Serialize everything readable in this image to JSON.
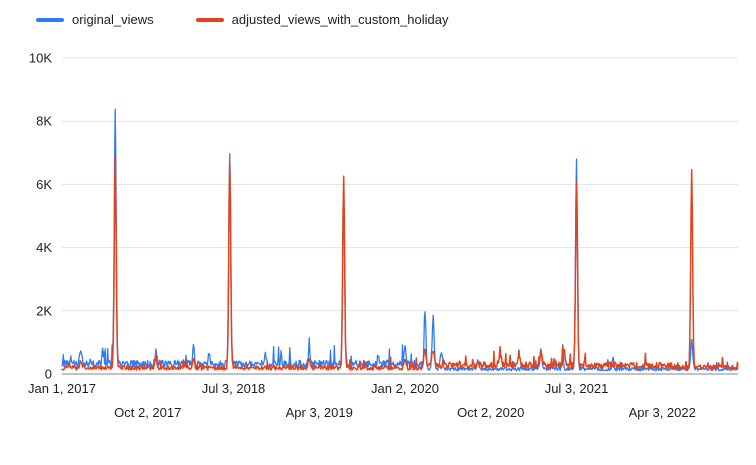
{
  "chart_data": {
    "type": "line",
    "title": "",
    "xlabel": "",
    "ylabel": "",
    "legend_position": "top-left",
    "grid": "horizontal",
    "colors": {
      "grid_line": "#e3e3e3",
      "axis_line": "#80868b",
      "tick_text": "#1f1f1f",
      "background": "#ffffff"
    },
    "x_axis": {
      "start_date": "2017-01-01",
      "total_days": 2160,
      "ticks": [
        {
          "label": "Jan 1, 2017",
          "day": 0,
          "row": 0
        },
        {
          "label": "Oct 2, 2017",
          "day": 274,
          "row": 1
        },
        {
          "label": "Jul 3, 2018",
          "day": 548,
          "row": 0
        },
        {
          "label": "Apr 3, 2019",
          "day": 822,
          "row": 1
        },
        {
          "label": "Jan 2, 2020",
          "day": 1096,
          "row": 0
        },
        {
          "label": "Oct 2, 2020",
          "day": 1370,
          "row": 1
        },
        {
          "label": "Jul 3, 2021",
          "day": 1644,
          "row": 0
        },
        {
          "label": "Apr 3, 2022",
          "day": 1918,
          "row": 1
        }
      ]
    },
    "y_axis": {
      "min": 0,
      "max": 10000,
      "tick_values": [
        0,
        2000,
        4000,
        6000,
        8000,
        10000
      ],
      "tick_labels": [
        "0",
        "2K",
        "4K",
        "6K",
        "8K",
        "10K"
      ]
    },
    "sampling_step_days": 2,
    "noise_seed": 42,
    "series": [
      {
        "name": "original_views",
        "color": "#2f7bf6",
        "stroke_width": 1.3,
        "baseline_segments": [
          {
            "from": 0,
            "to": 1150,
            "mean": 330,
            "amp": 450,
            "spike_prob": 0.05
          },
          {
            "from": 1150,
            "to": 2161,
            "mean": 165,
            "amp": 220,
            "spike_prob": 0.04
          }
        ],
        "spikes": [
          {
            "day": 60,
            "peak": 500,
            "width": 3
          },
          {
            "day": 130,
            "peak": 450,
            "width": 2
          },
          {
            "day": 170,
            "peak": 8150,
            "width": 3
          },
          {
            "day": 300,
            "peak": 420,
            "width": 3
          },
          {
            "day": 420,
            "peak": 520,
            "width": 3
          },
          {
            "day": 470,
            "peak": 380,
            "width": 2
          },
          {
            "day": 536,
            "peak": 6600,
            "width": 3
          },
          {
            "day": 650,
            "peak": 350,
            "width": 2
          },
          {
            "day": 700,
            "peak": 400,
            "width": 2
          },
          {
            "day": 790,
            "peak": 480,
            "width": 3
          },
          {
            "day": 900,
            "peak": 5300,
            "width": 3
          },
          {
            "day": 1010,
            "peak": 350,
            "width": 2
          },
          {
            "day": 1096,
            "peak": 520,
            "width": 3
          },
          {
            "day": 1160,
            "peak": 1800,
            "width": 3
          },
          {
            "day": 1186,
            "peak": 1650,
            "width": 3
          },
          {
            "day": 1212,
            "peak": 550,
            "width": 4
          },
          {
            "day": 1330,
            "peak": 300,
            "width": 3
          },
          {
            "day": 1530,
            "peak": 650,
            "width": 3
          },
          {
            "day": 1600,
            "peak": 720,
            "width": 2
          },
          {
            "day": 1644,
            "peak": 6600,
            "width": 3
          },
          {
            "day": 1760,
            "peak": 300,
            "width": 2
          },
          {
            "day": 2012,
            "peak": 950,
            "width": 3
          }
        ],
        "annual_peak_readings": [
          {
            "date": "mid 2017",
            "value": 8500
          },
          {
            "date": "mid 2018",
            "value": 7000
          },
          {
            "date": "mid 2019",
            "value": 5600
          },
          {
            "date": "spring 2020",
            "value": 2100
          },
          {
            "date": "mid 2021",
            "value": 6900
          },
          {
            "date": "mid 2022",
            "value": 1100
          }
        ]
      },
      {
        "name": "adjusted_views_with_custom_holiday",
        "color": "#e0441f",
        "stroke_width": 1.5,
        "baseline_segments": [
          {
            "from": 0,
            "to": 1150,
            "mean": 200,
            "amp": 260,
            "spike_prob": 0.04
          },
          {
            "from": 1150,
            "to": 1950,
            "mean": 285,
            "amp": 330,
            "spike_prob": 0.06
          },
          {
            "from": 1950,
            "to": 2161,
            "mean": 210,
            "amp": 220,
            "spike_prob": 0.05
          }
        ],
        "spikes": [
          {
            "day": 60,
            "peak": 250,
            "width": 3
          },
          {
            "day": 170,
            "peak": 6700,
            "width": 3
          },
          {
            "day": 300,
            "peak": 300,
            "width": 3
          },
          {
            "day": 420,
            "peak": 330,
            "width": 3
          },
          {
            "day": 536,
            "peak": 6550,
            "width": 3
          },
          {
            "day": 790,
            "peak": 320,
            "width": 3
          },
          {
            "day": 900,
            "peak": 6000,
            "width": 3
          },
          {
            "day": 1096,
            "peak": 300,
            "width": 3
          },
          {
            "day": 1160,
            "peak": 450,
            "width": 4
          },
          {
            "day": 1186,
            "peak": 380,
            "width": 4
          },
          {
            "day": 1400,
            "peak": 350,
            "width": 4
          },
          {
            "day": 1460,
            "peak": 400,
            "width": 3
          },
          {
            "day": 1530,
            "peak": 480,
            "width": 3
          },
          {
            "day": 1604,
            "peak": 560,
            "width": 3
          },
          {
            "day": 1644,
            "peak": 5900,
            "width": 3
          },
          {
            "day": 2012,
            "peak": 6250,
            "width": 3
          }
        ],
        "annual_peak_readings": [
          {
            "date": "mid 2017",
            "value": 6900
          },
          {
            "date": "mid 2018",
            "value": 6750
          },
          {
            "date": "mid 2019",
            "value": 6200
          },
          {
            "date": "mid 2021",
            "value": 6200
          },
          {
            "date": "mid 2022",
            "value": 6500
          }
        ]
      }
    ]
  }
}
